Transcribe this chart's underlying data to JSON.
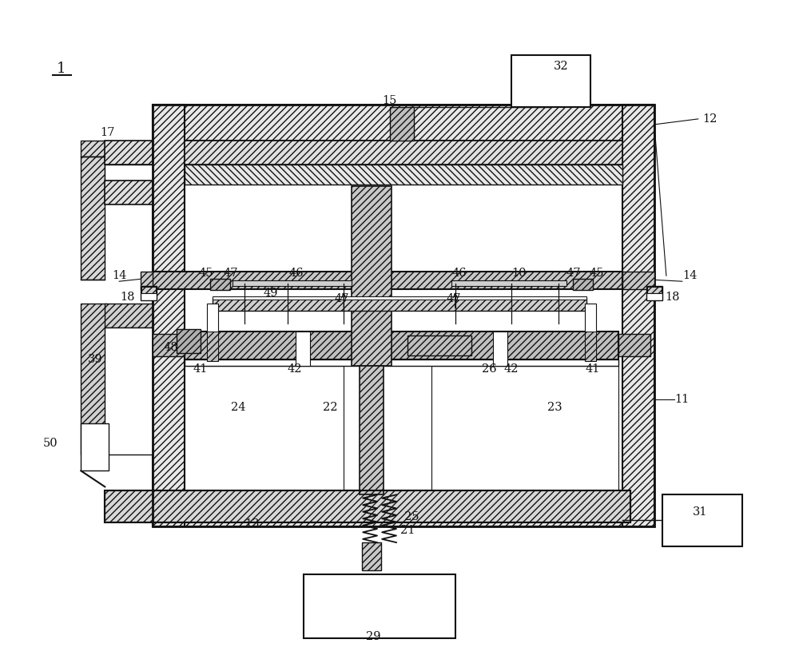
{
  "bg_color": "#ffffff",
  "lc": "#111111",
  "fig_width": 10.0,
  "fig_height": 8.3,
  "dpi": 100
}
